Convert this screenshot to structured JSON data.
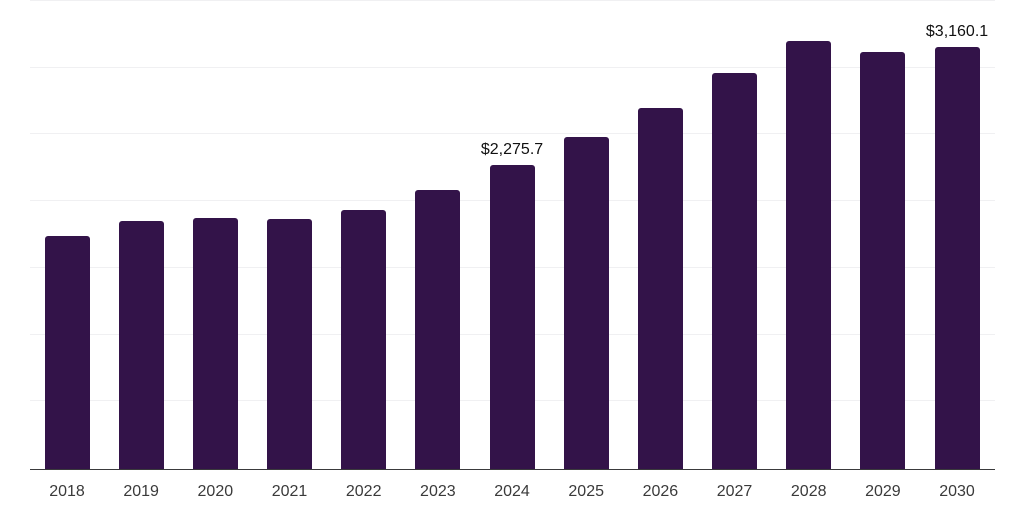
{
  "chart_data": {
    "type": "bar",
    "title": "",
    "xlabel": "",
    "ylabel": "",
    "categories": [
      "2018",
      "2019",
      "2020",
      "2021",
      "2022",
      "2023",
      "2024",
      "2025",
      "2026",
      "2027",
      "2028",
      "2029",
      "2030"
    ],
    "values": [
      1750,
      1860,
      1885,
      1875,
      1940,
      2090,
      2275.7,
      2485,
      2705,
      2970,
      3210,
      3125,
      3160.1
    ],
    "data_labels": {
      "2024": "$2,275.7",
      "2030": "$3,160.1"
    },
    "ylim": [
      0,
      3500
    ],
    "gridline_step": 500,
    "grid": true,
    "legend": false,
    "y_tick_labels_visible": false,
    "colors": {
      "bar": "#331349",
      "axis_line": "#3a3a3c",
      "gridline": "#f0f0f2",
      "tick_label": "#3a3a3a",
      "data_label": "#111111",
      "background": "#ffffff"
    }
  }
}
